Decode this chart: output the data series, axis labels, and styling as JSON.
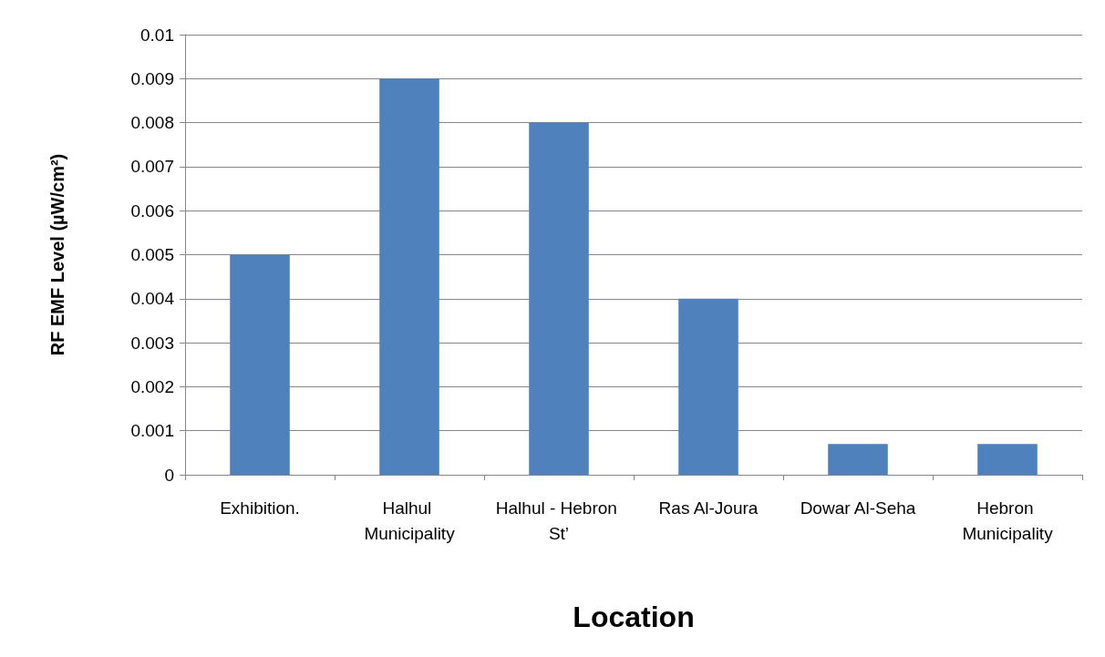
{
  "chart_data": {
    "type": "bar",
    "xlabel": "Location",
    "ylabel": "RF EMF Level (µW/cm²)",
    "categories": [
      "Exhibition.",
      "Halhul Municipality",
      "Halhul - Hebron St’",
      "Ras Al-Joura",
      "Dowar Al-Seha",
      "Hebron Municipality"
    ],
    "values": [
      0.005,
      0.009,
      0.008,
      0.004,
      0.0007,
      0.0007
    ],
    "color": "#4f81bd",
    "ylim": [
      0,
      0.01
    ],
    "yticks": [
      0,
      0.001,
      0.002,
      0.003,
      0.004,
      0.005,
      0.006,
      0.007,
      0.008,
      0.009,
      0.01
    ],
    "grid": "y"
  }
}
